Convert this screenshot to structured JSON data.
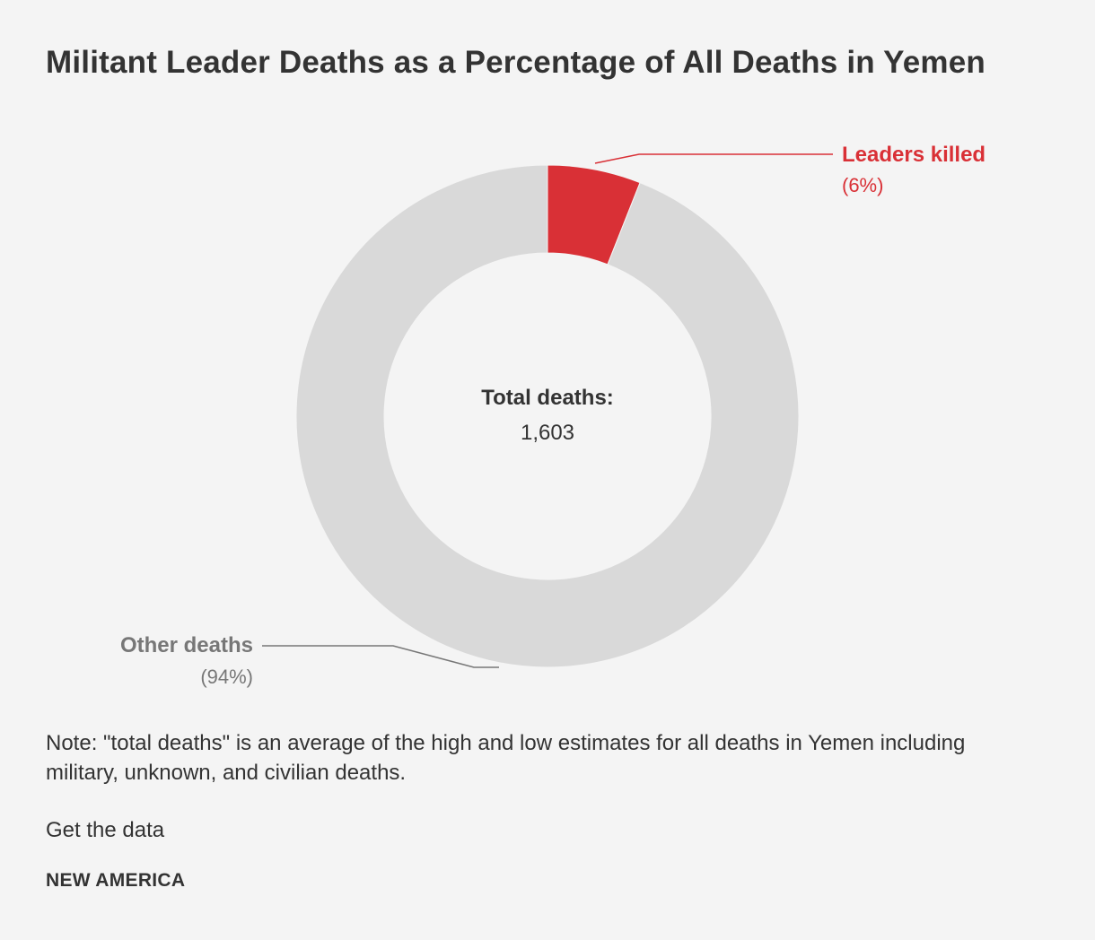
{
  "colors": {
    "leaders": "#d93036",
    "other": "#d9d9d9",
    "other_label": "#777777",
    "background": "#f4f4f4",
    "text": "#333333"
  },
  "chart_data": {
    "type": "pie",
    "title": "Militant Leader Deaths as a Percentage of All Deaths in Yemen",
    "style": "donut",
    "categories": [
      "Leaders killed",
      "Other deaths"
    ],
    "values": [
      6,
      94
    ],
    "value_labels": [
      "(6%)",
      "(94%)"
    ],
    "center_label": "Total deaths:",
    "center_value": "1,603",
    "unit": "%"
  },
  "note": "Note: \"total deaths\" is an average of the high and low estimates for all deaths in Yemen including military, unknown, and civilian deaths.",
  "get_data_label": "Get the data",
  "brand": "NEW AMERICA"
}
